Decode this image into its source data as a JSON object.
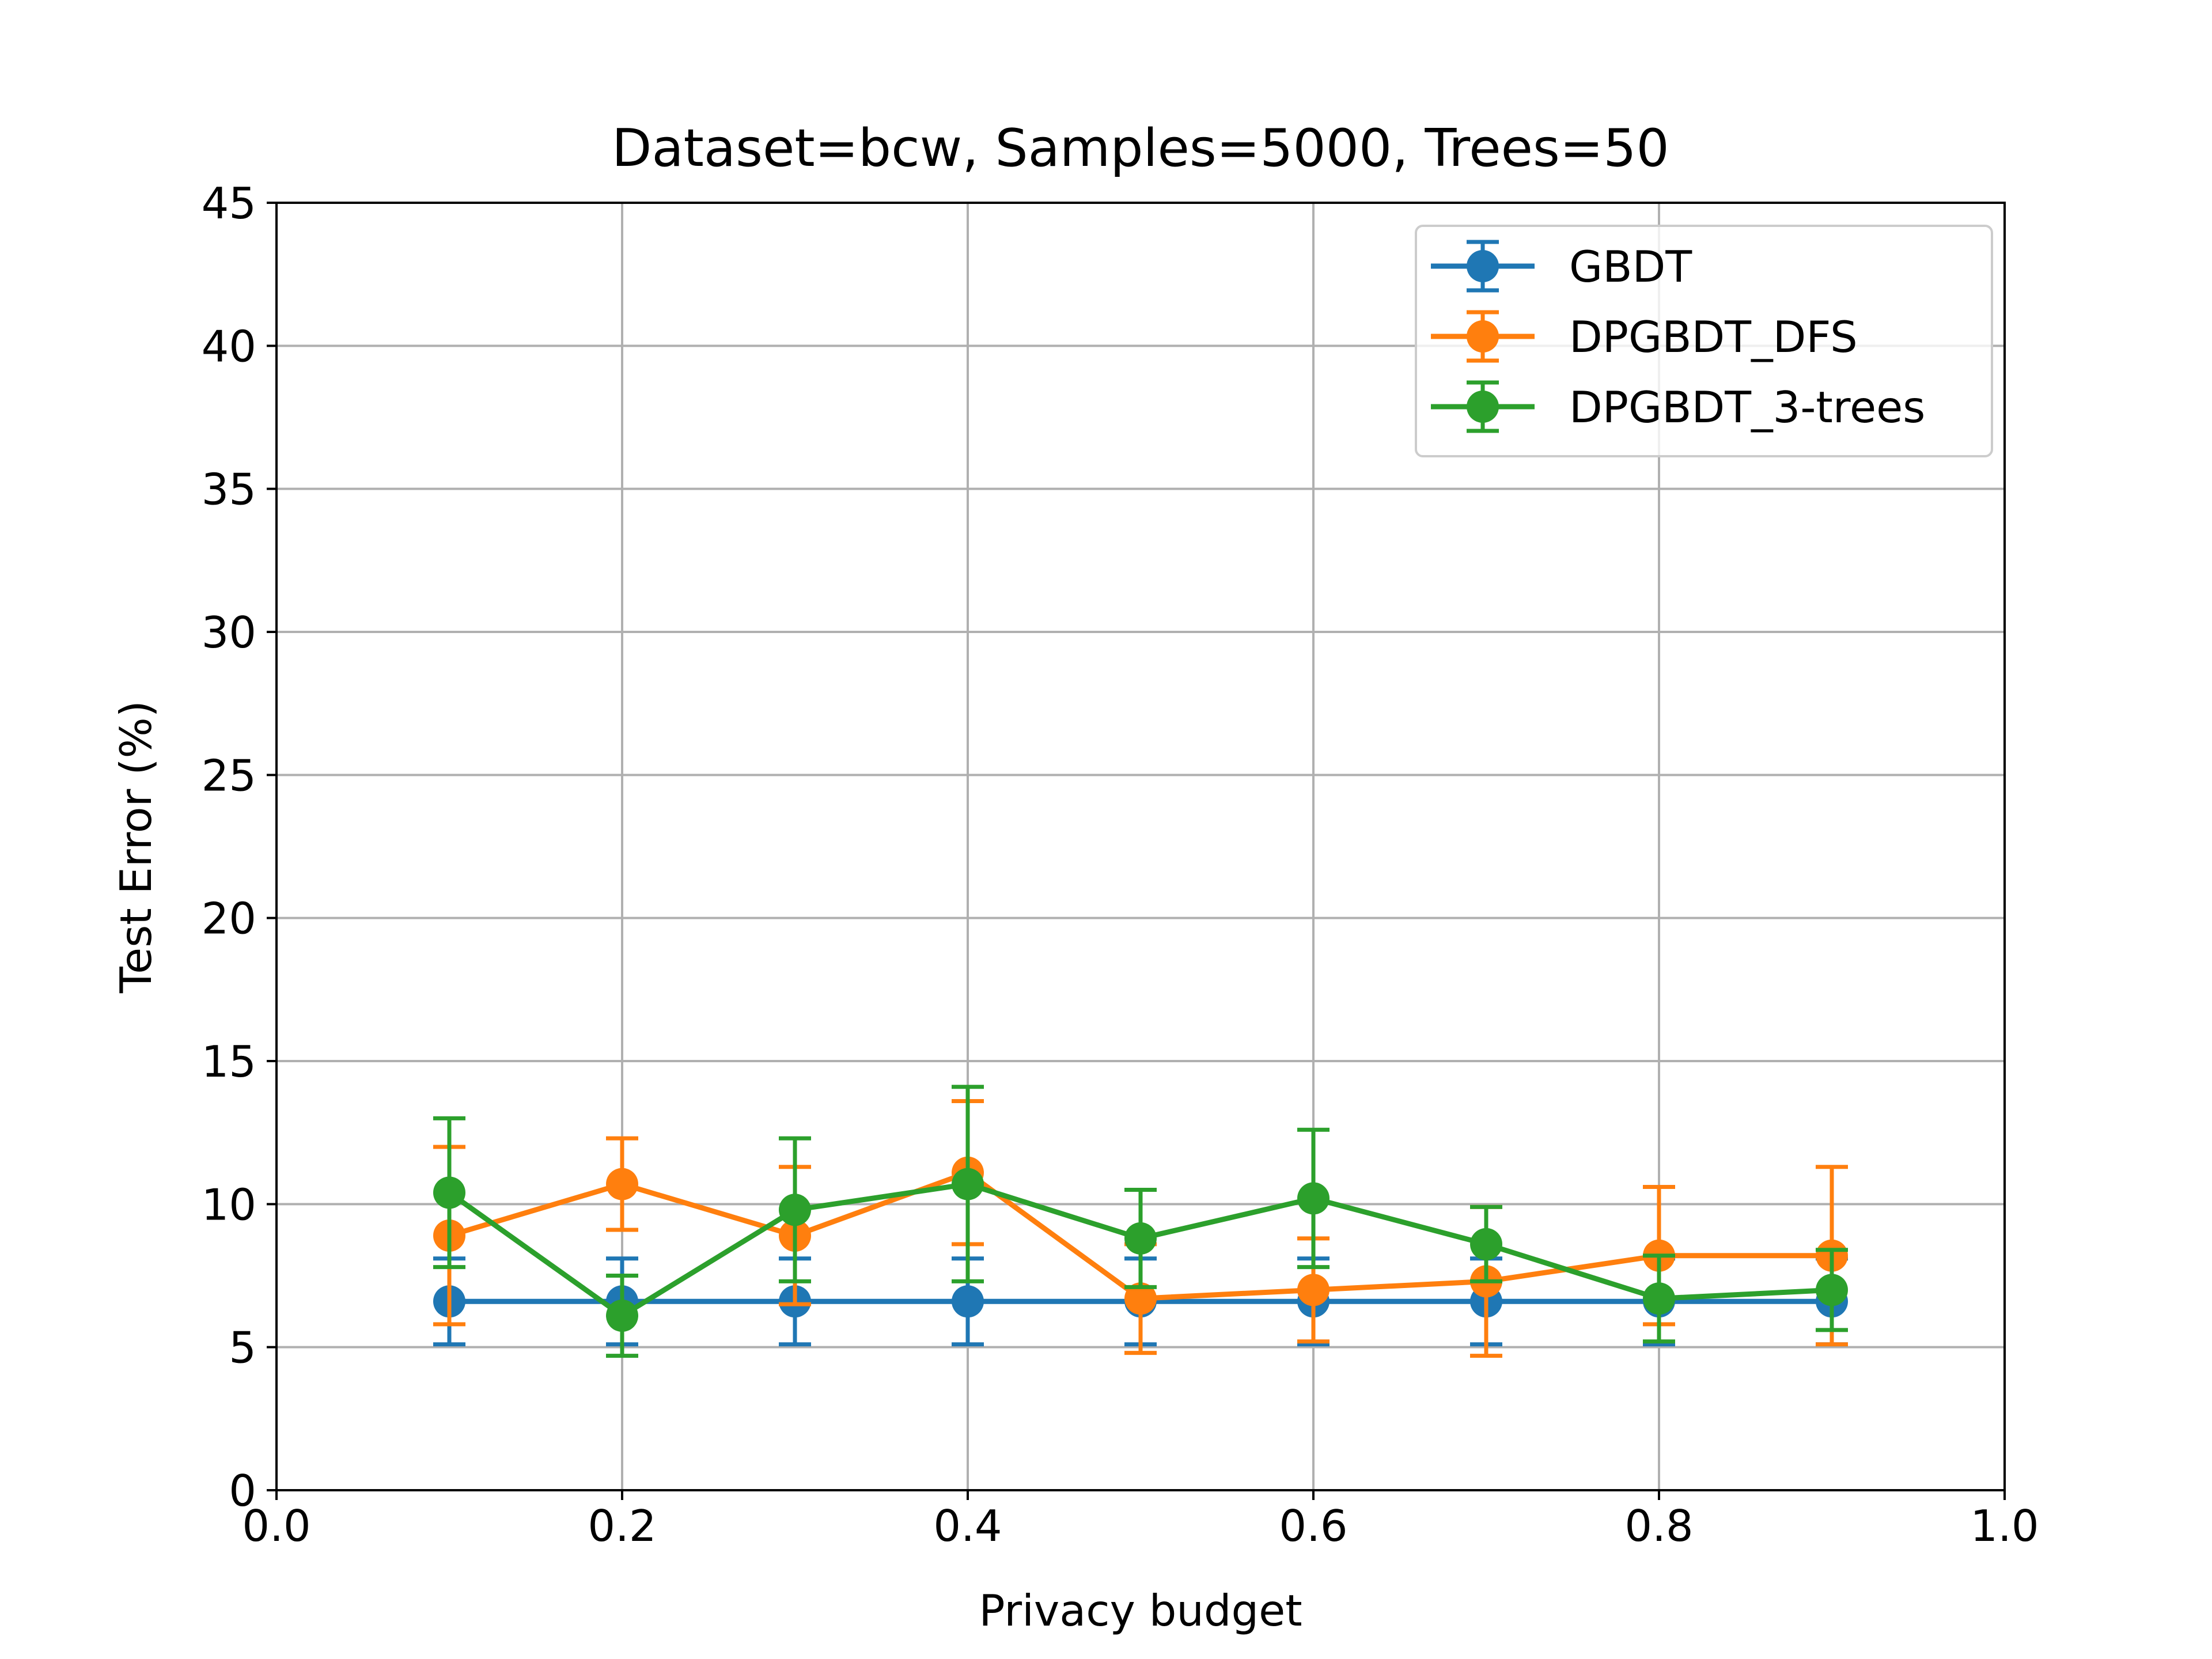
{
  "chart_data": {
    "type": "line",
    "title": "Dataset=bcw, Samples=5000, Trees=50",
    "xlabel": "Privacy budget",
    "ylabel": "Test Error (%)",
    "xlim": [
      0.0,
      1.0
    ],
    "ylim": [
      0,
      45
    ],
    "xticks": [
      "0.0",
      "0.2",
      "0.4",
      "0.6",
      "0.8",
      "1.0"
    ],
    "yticks": [
      "0",
      "5",
      "10",
      "15",
      "20",
      "25",
      "30",
      "35",
      "40",
      "45"
    ],
    "grid": true,
    "legend_position": "top-right",
    "x": [
      0.1,
      0.2,
      0.3,
      0.4,
      0.5,
      0.6,
      0.7,
      0.8,
      0.9
    ],
    "series": [
      {
        "name": "GBDT",
        "color": "#1f77b4",
        "values": [
          6.6,
          6.6,
          6.6,
          6.6,
          6.6,
          6.6,
          6.6,
          6.6,
          6.6
        ],
        "errors": [
          1.5,
          1.5,
          1.5,
          1.5,
          1.5,
          1.5,
          1.5,
          1.5,
          1.5
        ]
      },
      {
        "name": "DPGBDT_DFS",
        "color": "#ff7f0e",
        "values": [
          8.9,
          10.7,
          8.9,
          11.1,
          6.7,
          7.0,
          7.3,
          8.2,
          8.2
        ],
        "errors": [
          3.1,
          1.6,
          2.4,
          2.5,
          1.9,
          1.8,
          2.6,
          2.4,
          3.1
        ]
      },
      {
        "name": "DPGBDT_3-trees",
        "color": "#2ca02c",
        "values": [
          10.4,
          6.1,
          9.8,
          10.7,
          8.8,
          10.2,
          8.6,
          6.7,
          7.0
        ],
        "errors": [
          2.6,
          1.4,
          2.5,
          3.4,
          1.7,
          2.4,
          1.3,
          1.5,
          1.4
        ]
      }
    ]
  }
}
